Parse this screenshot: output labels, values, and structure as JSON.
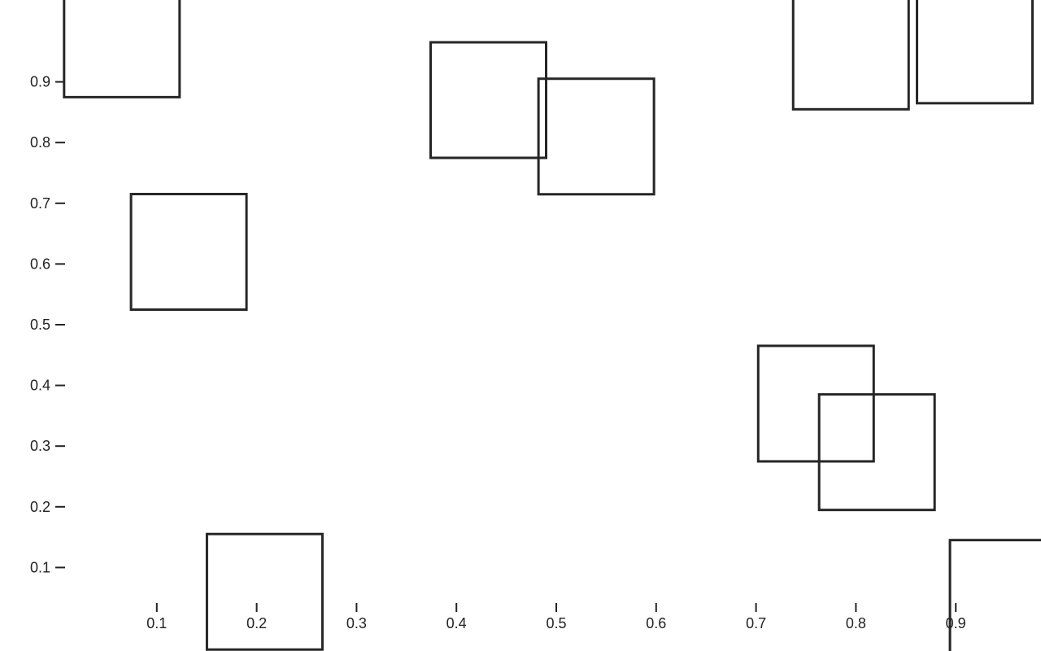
{
  "chart_data": {
    "type": "scatter",
    "marker": "square",
    "title": "",
    "xlabel": "",
    "ylabel": "",
    "xlim": [
      0,
      1
    ],
    "ylim": [
      0,
      1
    ],
    "grid": false,
    "x_ticks": [
      "0.1",
      "0.2",
      "0.3",
      "0.4",
      "0.5",
      "0.6",
      "0.7",
      "0.8",
      "0.9"
    ],
    "y_ticks": [
      "0.1",
      "0.2",
      "0.3",
      "0.4",
      "0.5",
      "0.6",
      "0.7",
      "0.8",
      "0.9"
    ],
    "points": [
      {
        "x": 0.065,
        "y": 0.97
      },
      {
        "x": 0.132,
        "y": 0.62
      },
      {
        "x": 0.208,
        "y": 0.06
      },
      {
        "x": 0.432,
        "y": 0.87
      },
      {
        "x": 0.54,
        "y": 0.81
      },
      {
        "x": 0.76,
        "y": 0.37
      },
      {
        "x": 0.821,
        "y": 0.29
      },
      {
        "x": 0.795,
        "y": 0.95
      },
      {
        "x": 0.919,
        "y": 0.96
      },
      {
        "x": 0.952,
        "y": 0.05
      }
    ],
    "colors": {
      "stroke": "#262626",
      "text": "#222222",
      "background": "#ffffff"
    }
  }
}
